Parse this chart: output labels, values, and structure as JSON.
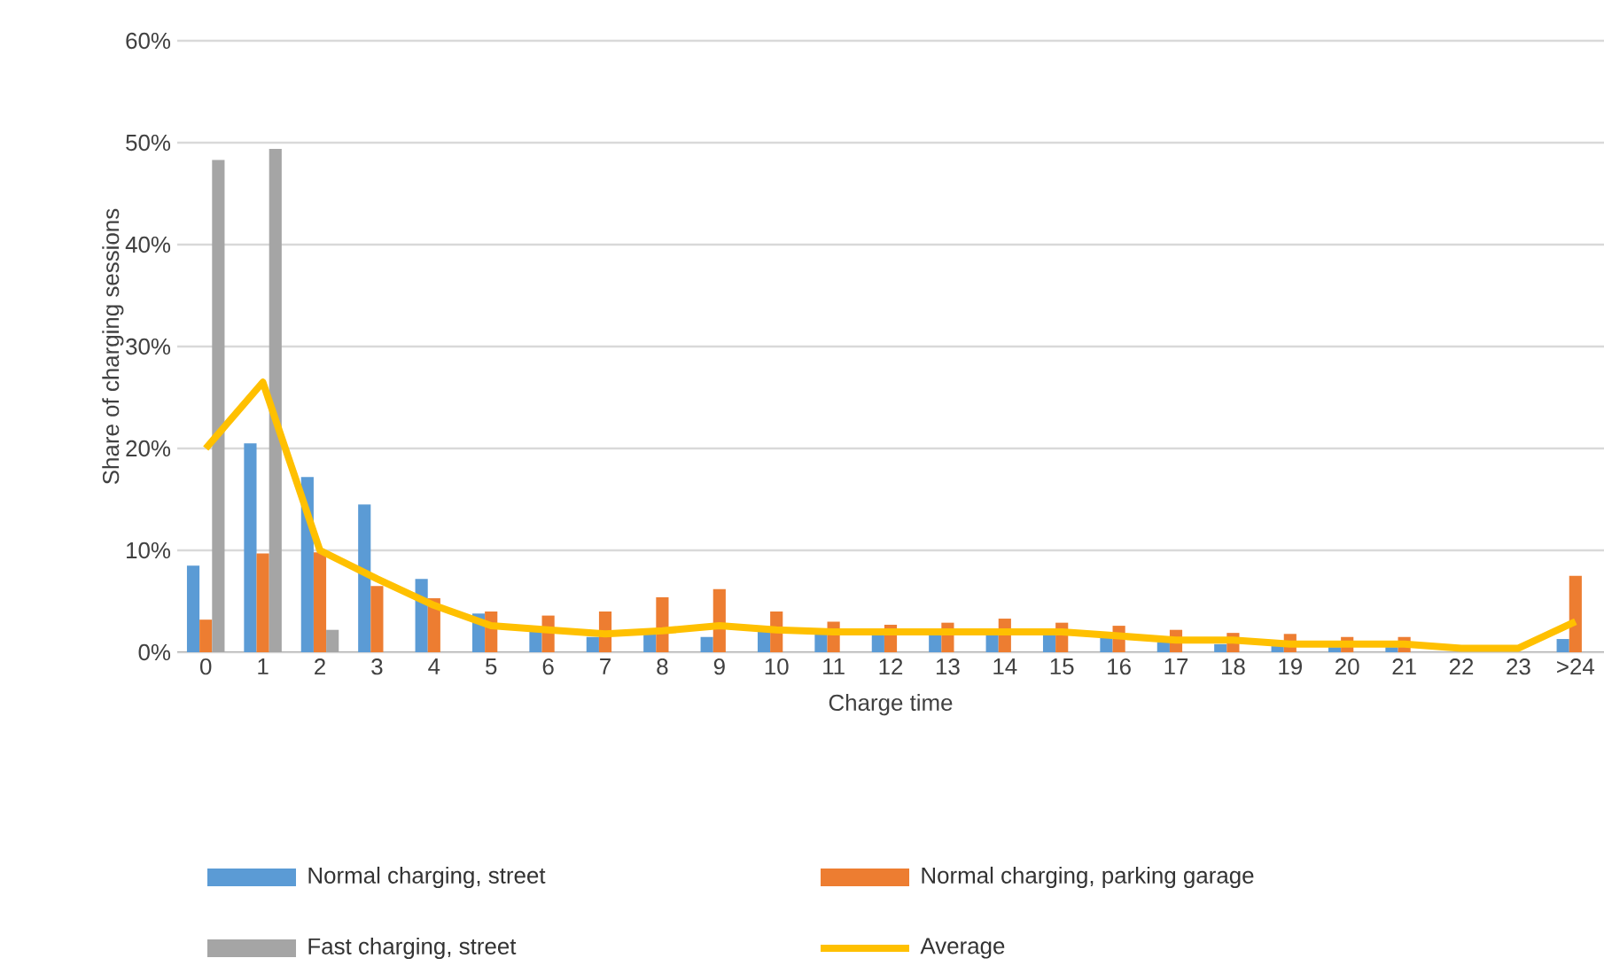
{
  "chart_data": {
    "type": "bar",
    "xlabel": "Charge time",
    "ylabel": "Share of charging sessions",
    "categories": [
      "0",
      "1",
      "2",
      "3",
      "4",
      "5",
      "6",
      "7",
      "8",
      "9",
      "10",
      "11",
      "12",
      "13",
      "14",
      "15",
      "16",
      "17",
      "18",
      "19",
      "20",
      "21",
      "22",
      "23",
      ">24"
    ],
    "series": [
      {
        "name": "Normal charging, street",
        "color": "#5b9bd5",
        "values": [
          8.5,
          20.5,
          17.2,
          14.5,
          7.2,
          3.8,
          2,
          1.5,
          2,
          1.5,
          2,
          1.8,
          1.8,
          1.8,
          1.8,
          1.8,
          1.5,
          1,
          0.8,
          0.6,
          0.5,
          0.5,
          null,
          0,
          1.3
        ]
      },
      {
        "name": "Normal charging, parking garage",
        "color": "#ed7d31",
        "values": [
          3.2,
          9.7,
          9.8,
          6.5,
          5.3,
          4,
          3.6,
          4,
          5.4,
          6.2,
          4,
          3,
          2.7,
          2.9,
          3.3,
          2.9,
          2.6,
          2.2,
          1.9,
          1.8,
          1.5,
          1.5,
          null,
          0,
          7.5
        ]
      },
      {
        "name": "Fast charging, street",
        "color": "#a5a5a5",
        "values": [
          48.3,
          49.4,
          2.2,
          0,
          0,
          0,
          0,
          0,
          0,
          0,
          0,
          0,
          0,
          0,
          0,
          0,
          0,
          0,
          0,
          0,
          0,
          0,
          0,
          0,
          0
        ]
      },
      {
        "name": "Average",
        "type": "line",
        "color": "#ffc000",
        "values": [
          20,
          26.5,
          10,
          7.2,
          4.6,
          2.6,
          2.2,
          1.8,
          2.1,
          2.6,
          2.2,
          2,
          2,
          2,
          2,
          2,
          1.6,
          1.2,
          1.2,
          0.8,
          0.8,
          0.8,
          0.4,
          0.4,
          3
        ]
      }
    ],
    "ylim": [
      0,
      60
    ],
    "yticks": [
      {
        "value": 0,
        "label": "0%"
      },
      {
        "value": 10,
        "label": "10%"
      },
      {
        "value": 20,
        "label": "20%"
      },
      {
        "value": 30,
        "label": "30%"
      },
      {
        "value": 40,
        "label": "40%"
      },
      {
        "value": 50,
        "label": "50%"
      },
      {
        "value": 60,
        "label": "60%"
      }
    ],
    "grid": "y",
    "legend": "bottom"
  }
}
